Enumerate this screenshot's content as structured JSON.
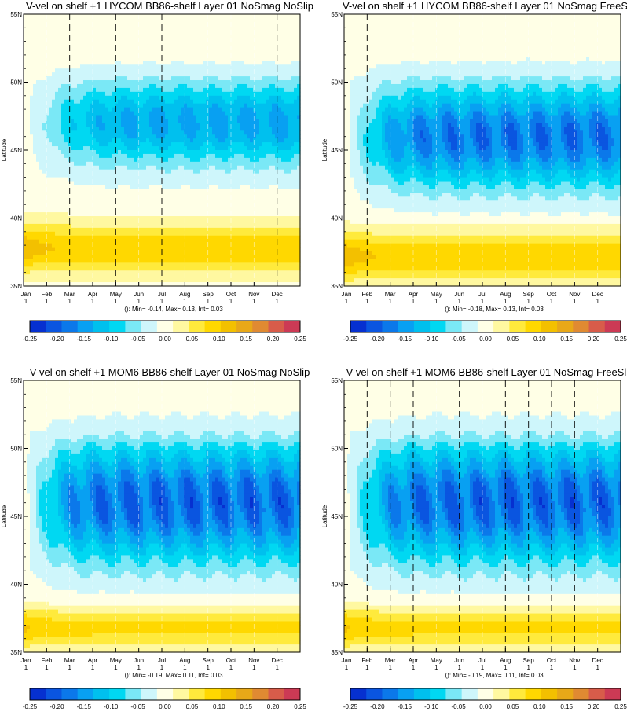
{
  "figure": {
    "months": [
      "Jan",
      "Feb",
      "Mar",
      "Apr",
      "May",
      "Jun",
      "Jul",
      "Aug",
      "Sep",
      "Oct",
      "Nov",
      "Dec"
    ],
    "day_label": "1",
    "lat_ticks": [
      "35N",
      "40N",
      "45N",
      "50N",
      "55N"
    ],
    "colorbar_ticks": [
      "-0.25",
      "-0.20",
      "-0.15",
      "-0.10",
      "-0.05",
      "0.00",
      "0.05",
      "0.10",
      "0.15",
      "0.20",
      "0.25"
    ],
    "colorbar_colors": [
      "#0630d0",
      "#0a55e0",
      "#0b78ea",
      "#08a0f2",
      "#00c0ee",
      "#00d8f2",
      "#7ae8f6",
      "#cef6fb",
      "#ffffe6",
      "#fff8a0",
      "#ffea3c",
      "#ffd800",
      "#f3c000",
      "#e8a818",
      "#e08a32",
      "#d85c4a",
      "#cc3a55"
    ]
  },
  "chart_data": [
    {
      "type": "heatmap",
      "title": "V-vel on shelf +1 HYCOM BB86-shelf Layer 01 NoSmag NoSlip",
      "ylabel": "Latitude",
      "stats": "(): Min= -0.14, Max= 0.13, Int= 0.03",
      "x": [
        "Jan",
        "Feb",
        "Mar",
        "Apr",
        "May",
        "Jun",
        "Jul",
        "Aug",
        "Sep",
        "Oct",
        "Nov",
        "Dec"
      ],
      "ylim": [
        35,
        55
      ],
      "clim": [
        -0.25,
        0.25
      ],
      "contour_interval": 0.03,
      "min": -0.14,
      "max": 0.13,
      "dashed_months": [
        "Mar",
        "May",
        "Jul",
        "Dec"
      ],
      "model": {
        "hot_lat": 37.8,
        "hot_width": 1.8,
        "hot_amp": 0.13,
        "core_lat": 47,
        "core_width": 3.2,
        "core_amp": -0.14,
        "zero_lat": 41.5,
        "north_decay": 4,
        "spin_months": 1.2,
        "wave_amp": 0.25
      }
    },
    {
      "type": "heatmap",
      "title": "V-vel on shelf +1 HYCOM BB86-shelf Layer 01 NoSmag FreeSlip",
      "ylabel": "Latitude",
      "stats": "(): Min= -0.18, Max= 0.13, Int= 0.03",
      "x": [
        "Jan",
        "Feb",
        "Mar",
        "Apr",
        "May",
        "Jun",
        "Jul",
        "Aug",
        "Sep",
        "Oct",
        "Nov",
        "Dec"
      ],
      "ylim": [
        35,
        55
      ],
      "clim": [
        -0.25,
        0.25
      ],
      "contour_interval": 0.03,
      "min": -0.18,
      "max": 0.13,
      "dashed_months": [
        "Jan",
        "Feb"
      ],
      "model": {
        "hot_lat": 37.2,
        "hot_width": 1.8,
        "hot_amp": 0.13,
        "core_lat": 46,
        "core_width": 3.8,
        "core_amp": -0.18,
        "zero_lat": 40.2,
        "north_decay": 4.5,
        "spin_months": 1.0,
        "wave_amp": 0.3
      }
    },
    {
      "type": "heatmap",
      "title": "V-vel on shelf +1 MOM6 BB86-shelf Layer 01 NoSmag NoSlip",
      "ylabel": "Latitude",
      "stats": "(): Min= -0.19, Max= 0.11, Int= 0.03",
      "x": [
        "Jan",
        "Feb",
        "Mar",
        "Apr",
        "May",
        "Jun",
        "Jul",
        "Aug",
        "Sep",
        "Oct",
        "Nov",
        "Dec"
      ],
      "ylim": [
        35,
        55
      ],
      "clim": [
        -0.25,
        0.25
      ],
      "contour_interval": 0.03,
      "min": -0.19,
      "max": 0.11,
      "dashed_months": [],
      "model": {
        "hot_lat": 36.8,
        "hot_width": 1.5,
        "hot_amp": 0.11,
        "core_lat": 46,
        "core_width": 4.5,
        "core_amp": -0.19,
        "zero_lat": 38.8,
        "north_decay": 5,
        "spin_months": 0.9,
        "wave_amp": 0.35
      }
    },
    {
      "type": "heatmap",
      "title": "V-vel on shelf +1 MOM6 BB86-shelf Layer 01 NoSmag FreeSlip",
      "ylabel": "Latitude",
      "stats": "(): Min= -0.19, Max= 0.11, Int= 0.03",
      "x": [
        "Jan",
        "Feb",
        "Mar",
        "Apr",
        "May",
        "Jun",
        "Jul",
        "Aug",
        "Sep",
        "Oct",
        "Nov",
        "Dec"
      ],
      "ylim": [
        35,
        55
      ],
      "clim": [
        -0.25,
        0.25
      ],
      "contour_interval": 0.03,
      "min": -0.19,
      "max": 0.11,
      "dashed_months": [
        "Feb",
        "Mar",
        "Apr",
        "Jun",
        "Aug",
        "Sep",
        "Oct",
        "Nov"
      ],
      "model": {
        "hot_lat": 36.8,
        "hot_width": 1.5,
        "hot_amp": 0.11,
        "core_lat": 46,
        "core_width": 4.5,
        "core_amp": -0.19,
        "zero_lat": 38.8,
        "north_decay": 5,
        "spin_months": 0.9,
        "wave_amp": 0.35
      }
    }
  ]
}
